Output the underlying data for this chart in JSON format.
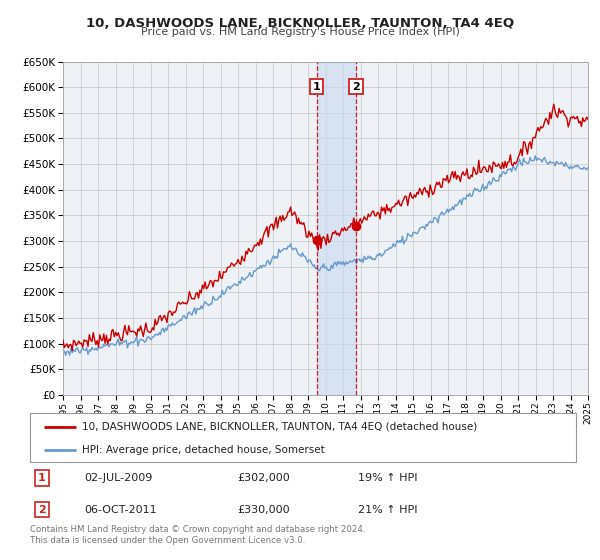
{
  "title": "10, DASHWOODS LANE, BICKNOLLER, TAUNTON, TA4 4EQ",
  "subtitle": "Price paid vs. HM Land Registry's House Price Index (HPI)",
  "legend_line1": "10, DASHWOODS LANE, BICKNOLLER, TAUNTON, TA4 4EQ (detached house)",
  "legend_line2": "HPI: Average price, detached house, Somerset",
  "transaction1_label": "1",
  "transaction1_date": "02-JUL-2009",
  "transaction1_price": "£302,000",
  "transaction1_hpi": "19% ↑ HPI",
  "transaction2_label": "2",
  "transaction2_date": "06-OCT-2011",
  "transaction2_price": "£330,000",
  "transaction2_hpi": "21% ↑ HPI",
  "transaction1_year": 2009.5,
  "transaction2_year": 2011.75,
  "transaction1_value": 302000,
  "transaction2_value": 330000,
  "red_color": "#cc0000",
  "blue_color": "#6699cc",
  "background_color": "#eef2f7",
  "grid_color": "#cccccc",
  "footnote": "Contains HM Land Registry data © Crown copyright and database right 2024.\nThis data is licensed under the Open Government Licence v3.0.",
  "ylim": [
    0,
    650000
  ],
  "xlim_start": 1995,
  "xlim_end": 2025
}
